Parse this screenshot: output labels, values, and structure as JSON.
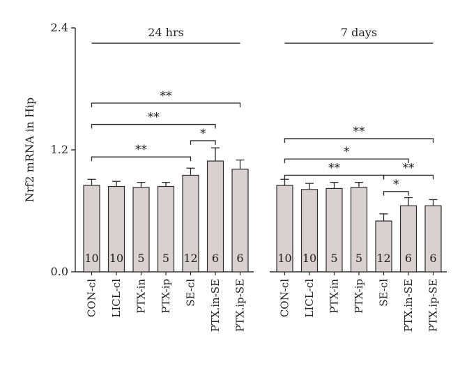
{
  "chart_data": {
    "type": "bar",
    "ylabel": "Nrf2 mRNA in Hip",
    "ylim": [
      0,
      2.4
    ],
    "yticks": [
      "0.0",
      "1.2",
      "2.4"
    ],
    "bar_color": "#d9d1cf",
    "edge_color": "#2b2b2b",
    "groups": [
      {
        "title": "24 hrs",
        "bars": [
          {
            "label": "CON-cl",
            "value": 0.85,
            "error": 0.06,
            "n": "10"
          },
          {
            "label": "LICL-cl",
            "value": 0.84,
            "error": 0.05,
            "n": "10"
          },
          {
            "label": "PTX-in",
            "value": 0.83,
            "error": 0.05,
            "n": "5"
          },
          {
            "label": "PTX-ip",
            "value": 0.84,
            "error": 0.04,
            "n": "5"
          },
          {
            "label": "SE-cl",
            "value": 0.95,
            "error": 0.07,
            "n": "12"
          },
          {
            "label": "PTX.in-SE",
            "value": 1.09,
            "error": 0.13,
            "n": "6"
          },
          {
            "label": "PTX.ip-SE",
            "value": 1.01,
            "error": 0.09,
            "n": "6"
          }
        ],
        "comparisons": [
          {
            "from": 0,
            "to": 4,
            "y": 1.13,
            "label": "**"
          },
          {
            "from": 4,
            "to": 5,
            "y": 1.29,
            "label": "*"
          },
          {
            "from": 0,
            "to": 5,
            "y": 1.45,
            "label": "**"
          },
          {
            "from": 0,
            "to": 6,
            "y": 1.66,
            "label": "**"
          }
        ]
      },
      {
        "title": "7 days",
        "bars": [
          {
            "label": "CON-cl",
            "value": 0.85,
            "error": 0.06,
            "n": "10"
          },
          {
            "label": "LICL-cl",
            "value": 0.81,
            "error": 0.06,
            "n": "10"
          },
          {
            "label": "PTX-in",
            "value": 0.82,
            "error": 0.06,
            "n": "5"
          },
          {
            "label": "PTX-ip",
            "value": 0.83,
            "error": 0.05,
            "n": "5"
          },
          {
            "label": "SE-cl",
            "value": 0.5,
            "error": 0.07,
            "n": "12"
          },
          {
            "label": "PTX.in-SE",
            "value": 0.65,
            "error": 0.08,
            "n": "6"
          },
          {
            "label": "PTX.ip-SE",
            "value": 0.65,
            "error": 0.06,
            "n": "6"
          }
        ],
        "comparisons": [
          {
            "from": 4,
            "to": 5,
            "y": 0.79,
            "label": "*"
          },
          {
            "from": 4,
            "to": 6,
            "y": 0.95,
            "label": "**"
          },
          {
            "from": 0,
            "to": 4,
            "y": 0.95,
            "label": "**"
          },
          {
            "from": 0,
            "to": 5,
            "y": 1.11,
            "label": "*"
          },
          {
            "from": 0,
            "to": 6,
            "y": 1.31,
            "label": "**"
          }
        ]
      }
    ]
  }
}
